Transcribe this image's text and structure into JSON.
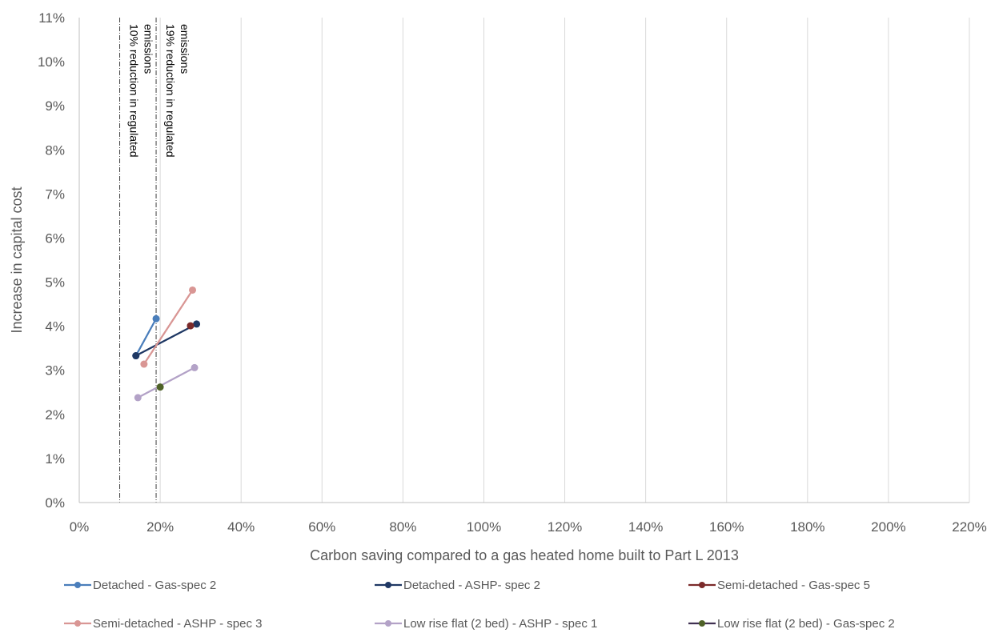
{
  "chart_data": {
    "type": "scatter",
    "xlabel": "Carbon saving compared to a gas heated home built to Part L 2013",
    "ylabel": "Increase in capital cost",
    "xlim": [
      0,
      220
    ],
    "ylim": [
      0,
      11
    ],
    "x_ticks": [
      0,
      20,
      40,
      60,
      80,
      100,
      120,
      140,
      160,
      180,
      200,
      220
    ],
    "y_ticks": [
      0,
      1,
      2,
      3,
      4,
      5,
      6,
      7,
      8,
      9,
      10,
      11
    ],
    "x_tick_labels": [
      "0%",
      "20%",
      "40%",
      "60%",
      "80%",
      "100%",
      "120%",
      "140%",
      "160%",
      "180%",
      "200%",
      "220%"
    ],
    "y_tick_labels": [
      "0%",
      "1%",
      "2%",
      "3%",
      "4%",
      "5%",
      "6%",
      "7%",
      "8%",
      "9%",
      "10%",
      "11%"
    ],
    "vertical_grid": true,
    "horizontal_grid": false,
    "legend_position": "bottom",
    "reference_lines": [
      {
        "x": 10,
        "label_line1": "10% reduction in regulated",
        "label_line2": "emissions"
      },
      {
        "x": 19,
        "label_line1": "19% reduction in regulated",
        "label_line2": "emissions"
      }
    ],
    "series": [
      {
        "name": "Detached - Gas-spec 2",
        "color": "#4a7ebb",
        "points": [
          [
            14,
            3.33
          ],
          [
            19,
            4.17
          ]
        ]
      },
      {
        "name": "Detached - ASHP- spec 2",
        "color": "#1f3864",
        "points": [
          [
            14,
            3.33
          ],
          [
            29,
            4.05
          ]
        ]
      },
      {
        "name": "Semi-detached - Gas-spec 5",
        "color": "#7b2a2a",
        "points": [
          [
            27.5,
            4.01
          ]
        ]
      },
      {
        "name": "Semi-detached - ASHP - spec 3",
        "color": "#d99694",
        "points": [
          [
            16,
            3.14
          ],
          [
            28,
            4.82
          ]
        ]
      },
      {
        "name": "Low rise flat (2 bed) - ASHP - spec 1",
        "color": "#b3a2c7",
        "points": [
          [
            14.5,
            2.38
          ],
          [
            28.5,
            3.06
          ]
        ]
      },
      {
        "name": "Low rise flat (2 bed) - Gas-spec 2",
        "color": "#403152",
        "marker_color": "#4f6228",
        "points": [
          [
            20,
            2.62
          ]
        ]
      }
    ]
  }
}
